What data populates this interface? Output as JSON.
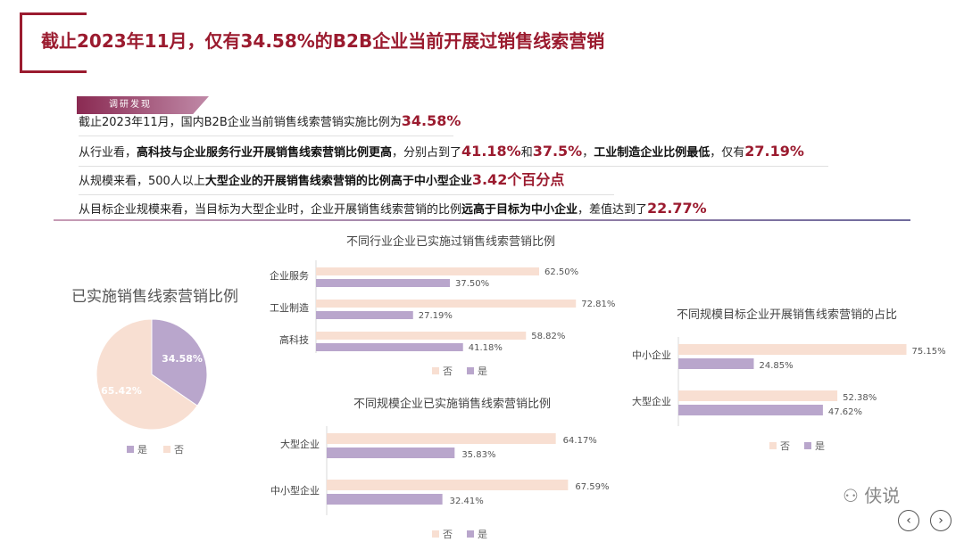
{
  "title": "截止2023年11月，仅有34.58%的B2B企业当前开展过销售线索营销",
  "findings": {
    "tag": "调研发现",
    "line1": {
      "a": "截止2023年11月，国内B2B企业当前销售线索营销实施比例为",
      "v": "34.58%"
    },
    "line2": {
      "a": "从行业看，",
      "b": "高科技与企业服务行业开展销售线索营销比例更高",
      "c": "，分别占到了",
      "v1": "41.18%",
      "d": "和",
      "v2": "37.5%",
      "e": "，",
      "f": "工业制造企业比例最低",
      "g": "，仅有",
      "v3": "27.19%"
    },
    "line3": {
      "a": "从规模来看，500人以上",
      "b": "大型企业的开展销售线索营销的比例高于中小型企业",
      "v": "3.42个百分点"
    },
    "line4": {
      "a": "从目标企业规模来看，当目标为大型企业时，企业开展销售线索营销的比例",
      "b": "远高于目标为中小企业",
      "c": "，差值达到了",
      "v": "22.77%"
    }
  },
  "colors": {
    "yes": "#b9a6cc",
    "no": "#f8dfd2",
    "accent": "#9b1b2f"
  },
  "chart_data": [
    {
      "type": "pie",
      "title": "已实施销售线索营销比例",
      "slices": [
        {
          "name": "是",
          "value": 34.58,
          "label": "34.58%"
        },
        {
          "name": "否",
          "value": 65.42,
          "label": "65.42%"
        }
      ],
      "legend": [
        "是",
        "否"
      ]
    },
    {
      "type": "bar",
      "orientation": "horizontal",
      "title": "不同行业企业已实施过销售线索营销比例",
      "categories": [
        "企业服务",
        "工业制造",
        "高科技"
      ],
      "series": [
        {
          "name": "否",
          "values": [
            62.5,
            72.81,
            58.82
          ],
          "labels": [
            "62.50%",
            "72.81%",
            "58.82%"
          ]
        },
        {
          "name": "是",
          "values": [
            37.5,
            27.19,
            41.18
          ],
          "labels": [
            "37.50%",
            "27.19%",
            "41.18%"
          ]
        }
      ],
      "legend": [
        "否",
        "是"
      ]
    },
    {
      "type": "bar",
      "orientation": "horizontal",
      "title": "不同规模企业已实施销售线索营销比例",
      "categories": [
        "大型企业",
        "中小型企业"
      ],
      "series": [
        {
          "name": "否",
          "values": [
            64.17,
            67.59
          ],
          "labels": [
            "64.17%",
            "67.59%"
          ]
        },
        {
          "name": "是",
          "values": [
            35.83,
            32.41
          ],
          "labels": [
            "35.83%",
            "32.41%"
          ]
        }
      ],
      "legend": [
        "否",
        "是"
      ]
    },
    {
      "type": "bar",
      "orientation": "horizontal",
      "title": "不同规模目标企业开展销售线索营销的占比",
      "categories": [
        "中小企业",
        "大型企业"
      ],
      "series": [
        {
          "name": "否",
          "values": [
            75.15,
            52.38
          ],
          "labels": [
            "75.15%",
            "52.38%"
          ]
        },
        {
          "name": "是",
          "values": [
            24.85,
            47.62
          ],
          "labels": [
            "24.85%",
            "47.62%"
          ]
        }
      ],
      "legend": [
        "否",
        "是"
      ]
    }
  ],
  "watermark": "侠说",
  "nav": {
    "prev": "‹",
    "next": "›"
  }
}
